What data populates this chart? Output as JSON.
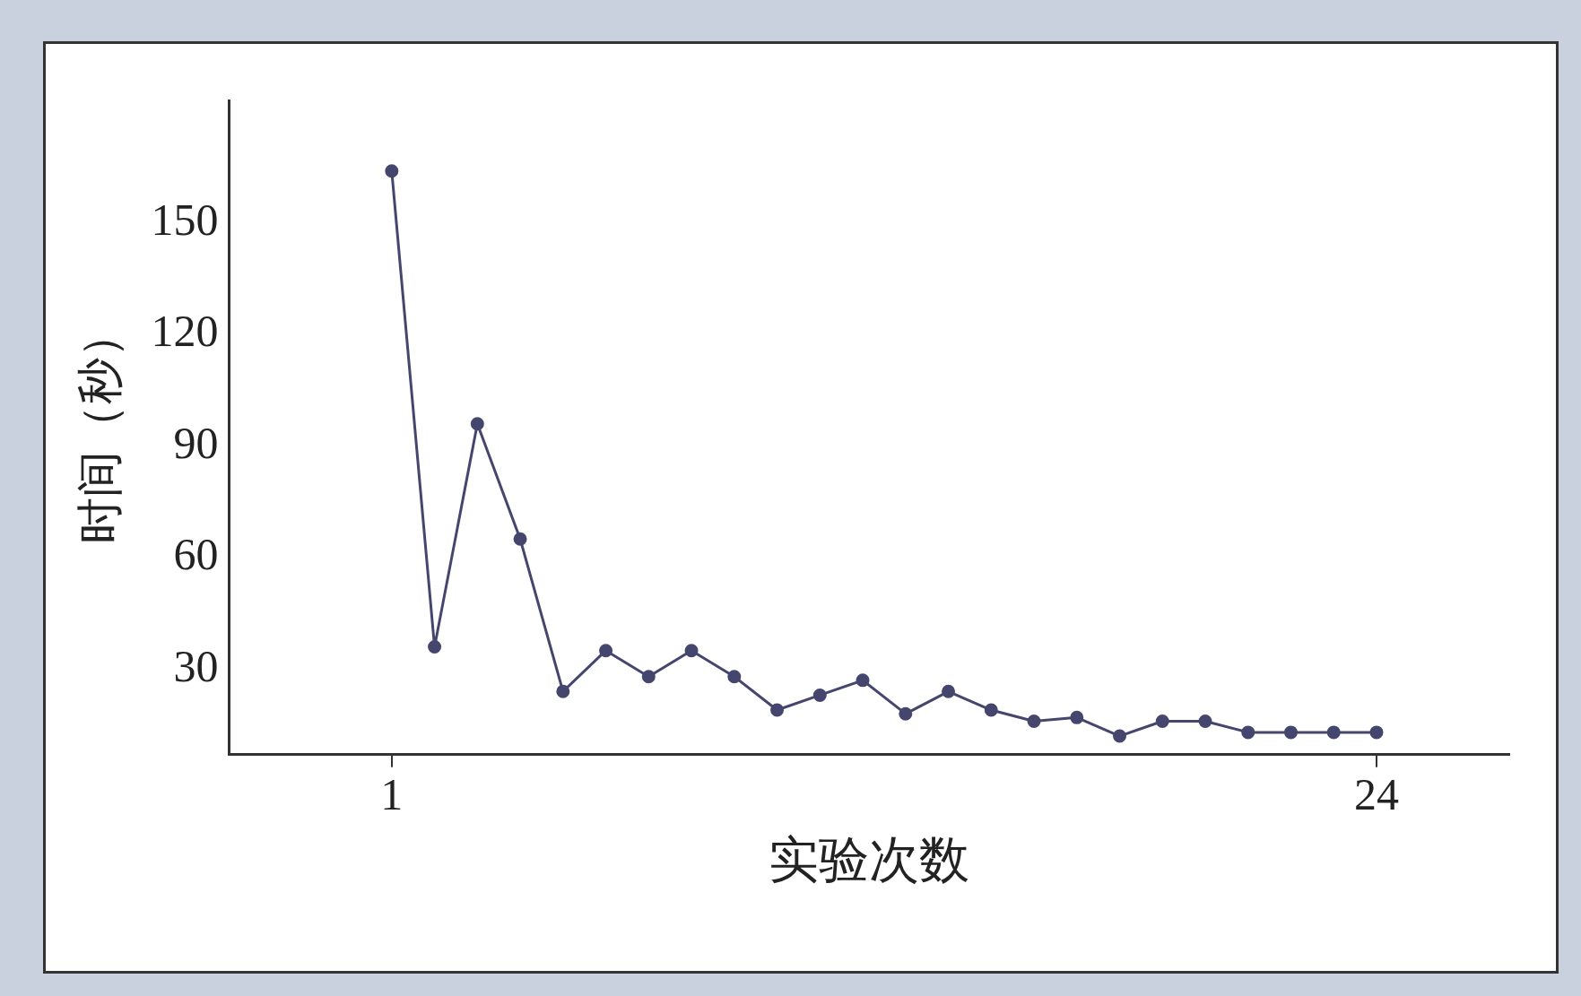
{
  "chart_data": {
    "type": "line",
    "xlabel": "实验次数",
    "ylabel": "时间（秒）",
    "x": [
      1,
      2,
      3,
      4,
      5,
      6,
      7,
      8,
      9,
      10,
      11,
      12,
      13,
      14,
      15,
      16,
      17,
      18,
      19,
      20,
      21,
      22,
      23,
      24
    ],
    "values": [
      164,
      36,
      96,
      65,
      24,
      35,
      28,
      35,
      28,
      19,
      23,
      27,
      18,
      24,
      19,
      16,
      17,
      12,
      16,
      16,
      13,
      13,
      13,
      13
    ],
    "color": "#45466e",
    "marker": "circle",
    "line_style": "solid",
    "grid": false,
    "xlim": [
      -2.8,
      27.1
    ],
    "xticks": [
      1,
      24
    ],
    "ylim": [
      7,
      183
    ],
    "yticks": [
      30,
      60,
      90,
      120,
      150
    ]
  }
}
